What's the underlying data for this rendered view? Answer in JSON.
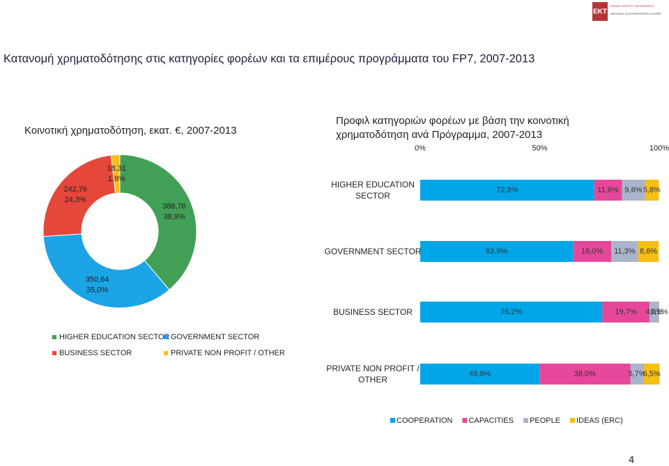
{
  "logo": {
    "mark": "EKT",
    "name_gr": "ΕΘΝΙΚΟ ΚΕΝΤΡΟ ΤΕΚΜΗΡΙΩΣΗΣ",
    "name_en": "NATIONAL DOCUMENTATION CENTRE"
  },
  "title": "Κατανομή χρηματοδότησης στις κατηγορίες φορέων και τα επιμέρους προγράμματα του FP7, 2007-2013",
  "page_number": "4",
  "chart_data": [
    {
      "type": "donut",
      "title": "Κοινοτική χρηματοδότηση, εκατ. €, 2007-2013",
      "categories": [
        "HIGHER EDUCATION SECTOR",
        "GOVERNMENT SECTOR",
        "BUSINESS SECTOR",
        "PRIVATE NON PROFIT / OTHER"
      ],
      "values": [
        388.76,
        350.64,
        242.76,
        18.31
      ],
      "value_labels": [
        "388,76",
        "350,64",
        "242,76",
        "18,31"
      ],
      "percent_labels": [
        "38,9%",
        "35,0%",
        "24,3%",
        "1,8%"
      ],
      "colors": [
        "#41a055",
        "#1ba4e6",
        "#e5473a",
        "#f5be1a"
      ],
      "legend": "bottom"
    },
    {
      "type": "bar",
      "orientation": "horizontal",
      "stacked": true,
      "title": "Προφιλ κατηγοριών φορέων με βάση την κοινοτική χρηματοδότηση ανά Πρόγραμμα, 2007-2013",
      "categories": [
        "HIGHER EDUCATION SECTOR",
        "GOVERNMENT SECTOR",
        "BUSINESS SECTOR",
        "PRIVATE NON PROFIT / OTHER"
      ],
      "series": [
        {
          "name": "COOPERATION",
          "color": "#00a6e8",
          "values": [
            72.8,
            63.9,
            76.2,
            49.9
          ],
          "value_labels": [
            "72,8%",
            "63,9%",
            "76,2%",
            "49,9%"
          ]
        },
        {
          "name": "CAPACITIES",
          "color": "#e6479a",
          "values": [
            11.6,
            16.0,
            19.7,
            38.0
          ],
          "value_labels": [
            "11,6%",
            "16,0%",
            "19,7%",
            "38,0%"
          ]
        },
        {
          "name": "PEOPLE",
          "color": "#aab4cc",
          "values": [
            9.6,
            11.3,
            4.0,
            5.7
          ],
          "value_labels": [
            "9,6%",
            "11,3%",
            "4,0%",
            "5,7%"
          ]
        },
        {
          "name": "IDEAS (ERC)",
          "color": "#f7be14",
          "values": [
            5.8,
            8.6,
            0.1,
            6.5
          ],
          "value_labels": [
            "5,8%",
            "8,6%",
            "0,1%",
            "6,5%"
          ]
        }
      ],
      "xlim": [
        0,
        100
      ],
      "xticks": [
        {
          "value": 0,
          "label": "0%"
        },
        {
          "value": 50,
          "label": "50%"
        },
        {
          "value": 100,
          "label": "100%"
        }
      ],
      "legend": "bottom"
    }
  ]
}
